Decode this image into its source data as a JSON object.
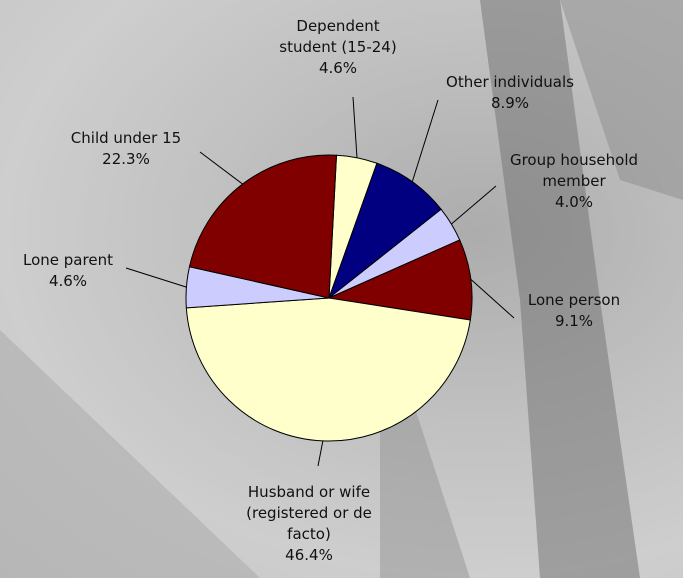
{
  "chart_data": {
    "type": "pie",
    "categories": [
      "Dependent student (15-24)",
      "Other individuals",
      "Group household member",
      "Lone person",
      "Husband or wife (registered or de facto)",
      "Lone parent",
      "Child under 15"
    ],
    "values": [
      4.6,
      8.9,
      4.0,
      9.1,
      46.4,
      4.6,
      22.3
    ],
    "value_labels": [
      "4.6%",
      "8.9%",
      "4.0%",
      "9.1%",
      "46.4%",
      "4.6%",
      "22.3%"
    ],
    "colors": [
      "#ffffcc",
      "#000080",
      "#ccccff",
      "#800000",
      "#ffffcc",
      "#ccccff",
      "#800000"
    ]
  }
}
